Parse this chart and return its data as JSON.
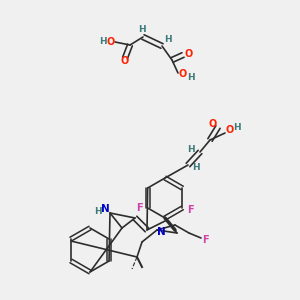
{
  "bg_color": "#f0f0f0",
  "bond_color": "#2d2d2d",
  "atom_colors": {
    "O": "#ff2200",
    "N": "#0000cc",
    "F": "#cc44aa",
    "H": "#3d7a7a",
    "C": "#2d2d2d"
  },
  "figsize": [
    3.0,
    3.0
  ],
  "dpi": 100
}
